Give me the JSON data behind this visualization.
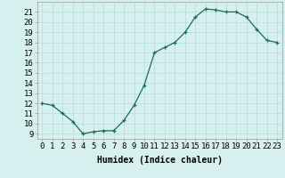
{
  "xlabel": "Humidex (Indice chaleur)",
  "ylabel": "",
  "x_values": [
    0,
    1,
    2,
    3,
    4,
    5,
    6,
    7,
    8,
    9,
    10,
    11,
    12,
    13,
    14,
    15,
    16,
    17,
    18,
    19,
    20,
    21,
    22,
    23
  ],
  "y_values": [
    12,
    11.8,
    11,
    10.2,
    9,
    9.2,
    9.3,
    9.3,
    10.3,
    11.8,
    13.8,
    17,
    17.5,
    18,
    19,
    20.5,
    21.3,
    21.2,
    21,
    21,
    20.5,
    19.3,
    18.2,
    18
  ],
  "ylim_min": 8.5,
  "ylim_max": 22.0,
  "xlim_min": -0.5,
  "xlim_max": 23.5,
  "yticks": [
    9,
    10,
    11,
    12,
    13,
    14,
    15,
    16,
    17,
    18,
    19,
    20,
    21
  ],
  "xticks": [
    0,
    1,
    2,
    3,
    4,
    5,
    6,
    7,
    8,
    9,
    10,
    11,
    12,
    13,
    14,
    15,
    16,
    17,
    18,
    19,
    20,
    21,
    22,
    23
  ],
  "line_color": "#1a6b5a",
  "marker": "+",
  "bg_color": "#d6f0ef",
  "grid_color": "#b8dbd9",
  "axis_label_fontsize": 7,
  "tick_fontsize": 6.5
}
